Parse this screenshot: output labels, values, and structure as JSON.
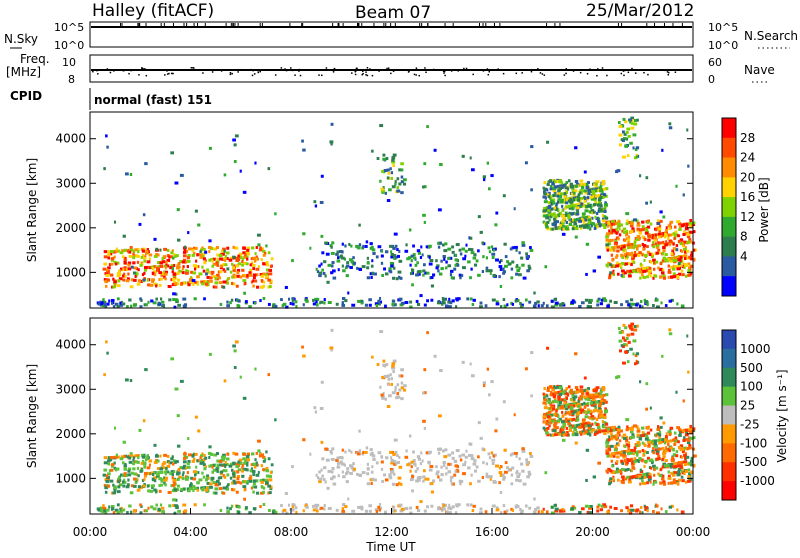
{
  "header": {
    "station": "Halley (fitACF)",
    "beam": "Beam 07",
    "date": "25/Mar/2012"
  },
  "nsky": {
    "label": "N.Sky",
    "ticks": [
      "10^5",
      "10^0"
    ]
  },
  "nsearch": {
    "label": "N.Search",
    "ticks": [
      "10^5",
      "10^0"
    ]
  },
  "freq": {
    "label1": "Freq.",
    "label2": "[MHz]",
    "ticks": [
      "10",
      "8"
    ]
  },
  "nave": {
    "label": "Nave",
    "ticks": [
      "60",
      "0"
    ]
  },
  "cpid": {
    "label": "CPID",
    "value": "normal (fast) 151"
  },
  "time_axis": {
    "label": "Time UT",
    "ticks": [
      "00:00",
      "04:00",
      "08:00",
      "12:00",
      "16:00",
      "20:00",
      "00:00"
    ]
  },
  "power_colorbar": {
    "label": "Power [dB]",
    "ticks": [
      "28",
      "24",
      "20",
      "16",
      "12",
      "8",
      "4"
    ],
    "colors": [
      "#ff0000",
      "#ff4a00",
      "#ff8c00",
      "#ffd200",
      "#7fd200",
      "#2faa2f",
      "#2e7d4f",
      "#2a5aa0",
      "#0000ff"
    ]
  },
  "velocity_colorbar": {
    "label": "Velocity [m s⁻¹]",
    "ticks": [
      "1000",
      "500",
      "100",
      "25",
      "-25",
      "-100",
      "-500",
      "-1000"
    ],
    "colors": [
      "#2a4ab0",
      "#2a6ea0",
      "#2e8a5a",
      "#5cc23a",
      "#bdbdbd",
      "#ff9a00",
      "#ff6a00",
      "#ff3000",
      "#ff0000"
    ]
  },
  "chart_data": [
    {
      "type": "heatmap",
      "name_panel": "power",
      "ylabel": "Slant Range [km]",
      "xlabel": "Time UT",
      "xlim": [
        0,
        24
      ],
      "ylim": [
        200,
        4600
      ],
      "yticks": [
        1000,
        2000,
        3000,
        4000
      ],
      "features": [
        {
          "t0": 0.5,
          "t1": 7.2,
          "r0": 700,
          "r1": 1600,
          "level": "strong"
        },
        {
          "t0": 9.0,
          "t1": 17.5,
          "r0": 900,
          "r1": 1700,
          "level": "weak"
        },
        {
          "t0": 18.0,
          "t1": 20.5,
          "r0": 2000,
          "r1": 3100,
          "level": "medium"
        },
        {
          "t0": 20.5,
          "t1": 24.0,
          "r0": 900,
          "r1": 2200,
          "level": "strong"
        }
      ]
    },
    {
      "type": "heatmap",
      "name_panel": "velocity",
      "ylabel": "Slant Range [km]",
      "xlabel": "Time UT",
      "xlim": [
        0,
        24
      ],
      "ylim": [
        200,
        4600
      ],
      "yticks": [
        1000,
        2000,
        3000,
        4000
      ]
    }
  ]
}
